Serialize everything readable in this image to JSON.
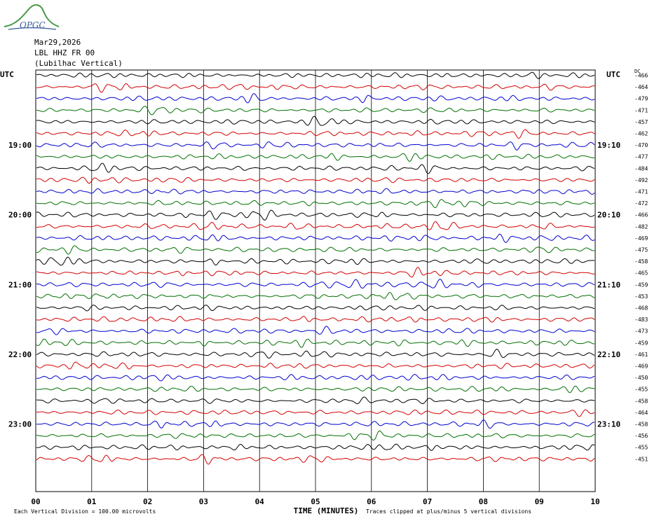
{
  "logo_text": "OPGC",
  "header": {
    "date": "Mar29,2026",
    "station": "LBL HHZ FR 00",
    "location": "(Lubilhac Vertical)"
  },
  "chart_data": {
    "type": "line",
    "title": "",
    "xlabel": "TIME (MINUTES)",
    "x_ticks": [
      "00",
      "01",
      "02",
      "03",
      "04",
      "05",
      "06",
      "07",
      "08",
      "09",
      "10"
    ],
    "xlim": [
      0,
      10
    ],
    "utc_label_left": "UTC",
    "utc_label_right": "UTC",
    "right_column_label": "DC",
    "trace_colors": [
      "#000000",
      "#d40000",
      "#0000d0",
      "#007000"
    ],
    "left_hour_labels": [
      {
        "row": 6,
        "label": "19:00"
      },
      {
        "row": 12,
        "label": "20:00"
      },
      {
        "row": 18,
        "label": "21:00"
      },
      {
        "row": 24,
        "label": "22:00"
      },
      {
        "row": 30,
        "label": "23:00"
      }
    ],
    "right_hour_labels": [
      {
        "row": 6,
        "label": "19:10"
      },
      {
        "row": 12,
        "label": "20:10"
      },
      {
        "row": 18,
        "label": "21:10"
      },
      {
        "row": 24,
        "label": "22:10"
      },
      {
        "row": 30,
        "label": "23:10"
      }
    ],
    "dc_offsets": [
      "-466",
      "-464",
      "-479",
      "-471",
      "-457",
      "-462",
      "-470",
      "-477",
      "-484",
      "-492",
      "-471",
      "-472",
      "-466",
      "-482",
      "-469",
      "-475",
      "-458",
      "-465",
      "-459",
      "-453",
      "-468",
      "-483",
      "-473",
      "-459",
      "-461",
      "-469",
      "-450",
      "-455",
      "-458",
      "-464",
      "-458",
      "-456",
      "-455",
      "-451"
    ],
    "footer_scale": "Each Vertical Division = 100.00 microvolts",
    "footer_clip": "Traces clipped at plus/minus 5 vertical divisions"
  }
}
